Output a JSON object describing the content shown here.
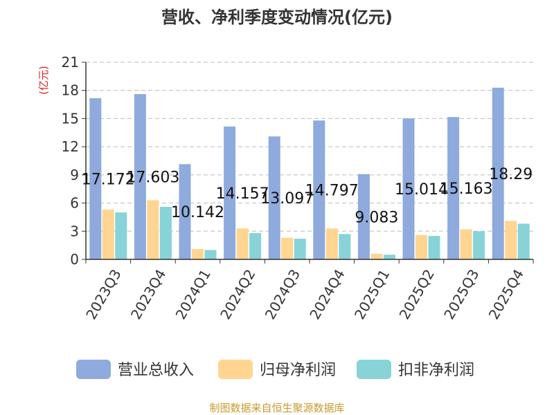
{
  "chart_data": {
    "type": "bar",
    "title": "营收、净利季度变动情况(亿元)",
    "ylabel": "(亿元)",
    "xlabel": "",
    "categories": [
      "2023Q3",
      "2023Q4",
      "2024Q1",
      "2024Q2",
      "2024Q3",
      "2024Q4",
      "2025Q1",
      "2025Q2",
      "2025Q3",
      "2025Q4"
    ],
    "series": [
      {
        "name": "营业总收入",
        "color": "#8faadc",
        "values": [
          17.172,
          17.603,
          10.142,
          14.157,
          13.097,
          14.797,
          9.083,
          15.014,
          15.163,
          18.29
        ],
        "labels": [
          "17.172",
          "17.603",
          "10.142",
          "14.157",
          "13.097",
          "14.797",
          "9.083",
          "15.014",
          "15.163",
          "18.29"
        ]
      },
      {
        "name": "归母净利润",
        "color": "#ffd591",
        "values": [
          5.3,
          6.3,
          1.1,
          3.3,
          2.3,
          3.3,
          0.6,
          2.6,
          3.2,
          4.1
        ]
      },
      {
        "name": "扣非净利润",
        "color": "#87d3d8",
        "values": [
          5.0,
          5.6,
          1.0,
          2.8,
          2.2,
          2.7,
          0.5,
          2.5,
          3.0,
          3.8
        ]
      }
    ],
    "ylim": [
      0,
      21
    ],
    "yticks": [
      0,
      3,
      6,
      9,
      12,
      15,
      18,
      21
    ],
    "grid": true,
    "legend_position": "bottom"
  },
  "footer": {
    "source": "制图数据来自恒生聚源数据库"
  },
  "colors": {
    "title": "#333333",
    "ylabel": "#e02020",
    "footer": "#c89a2c",
    "axis": "#333333",
    "grid": "#bbbbbb"
  }
}
